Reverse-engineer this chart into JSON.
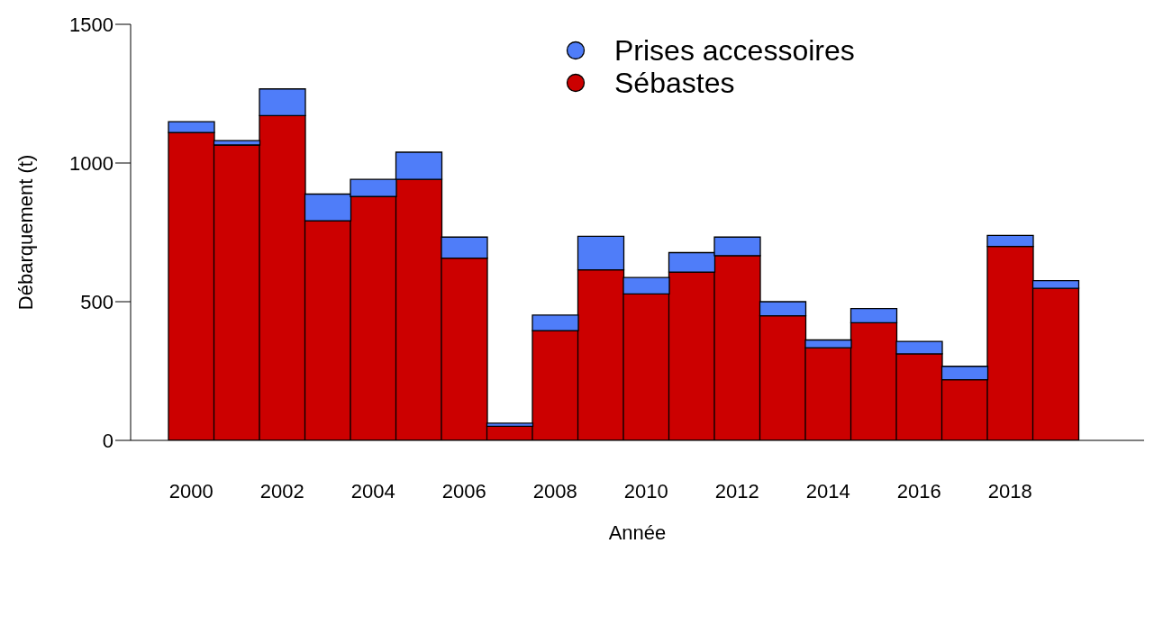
{
  "chart_data": {
    "type": "bar",
    "xlabel": "Année",
    "ylabel": "Débarquement (t)",
    "stacked": true,
    "legend": "top",
    "categories": [
      "2000",
      null,
      "2002",
      null,
      "2004",
      null,
      "2006",
      null,
      "2008",
      null,
      "2010",
      null,
      "2012",
      null,
      "2014",
      null,
      "2016",
      null,
      "2018",
      null
    ],
    "series": [
      {
        "name": "Sébastes",
        "color": "#cc0000",
        "values": [
          1110,
          1065,
          1171,
          792,
          879,
          941,
          657,
          51,
          396,
          615,
          528,
          607,
          666,
          449,
          334,
          424,
          312,
          219,
          699,
          548
        ]
      },
      {
        "name": "Prises accessoires",
        "color": "#4f7df9",
        "values": [
          39,
          16,
          96,
          96,
          62,
          98,
          76,
          11,
          56,
          121,
          59,
          70,
          67,
          51,
          28,
          51,
          45,
          48,
          40,
          28
        ]
      }
    ],
    "ylim": [
      0,
      1500
    ],
    "yticks": [
      0,
      500,
      1000,
      1500
    ]
  }
}
